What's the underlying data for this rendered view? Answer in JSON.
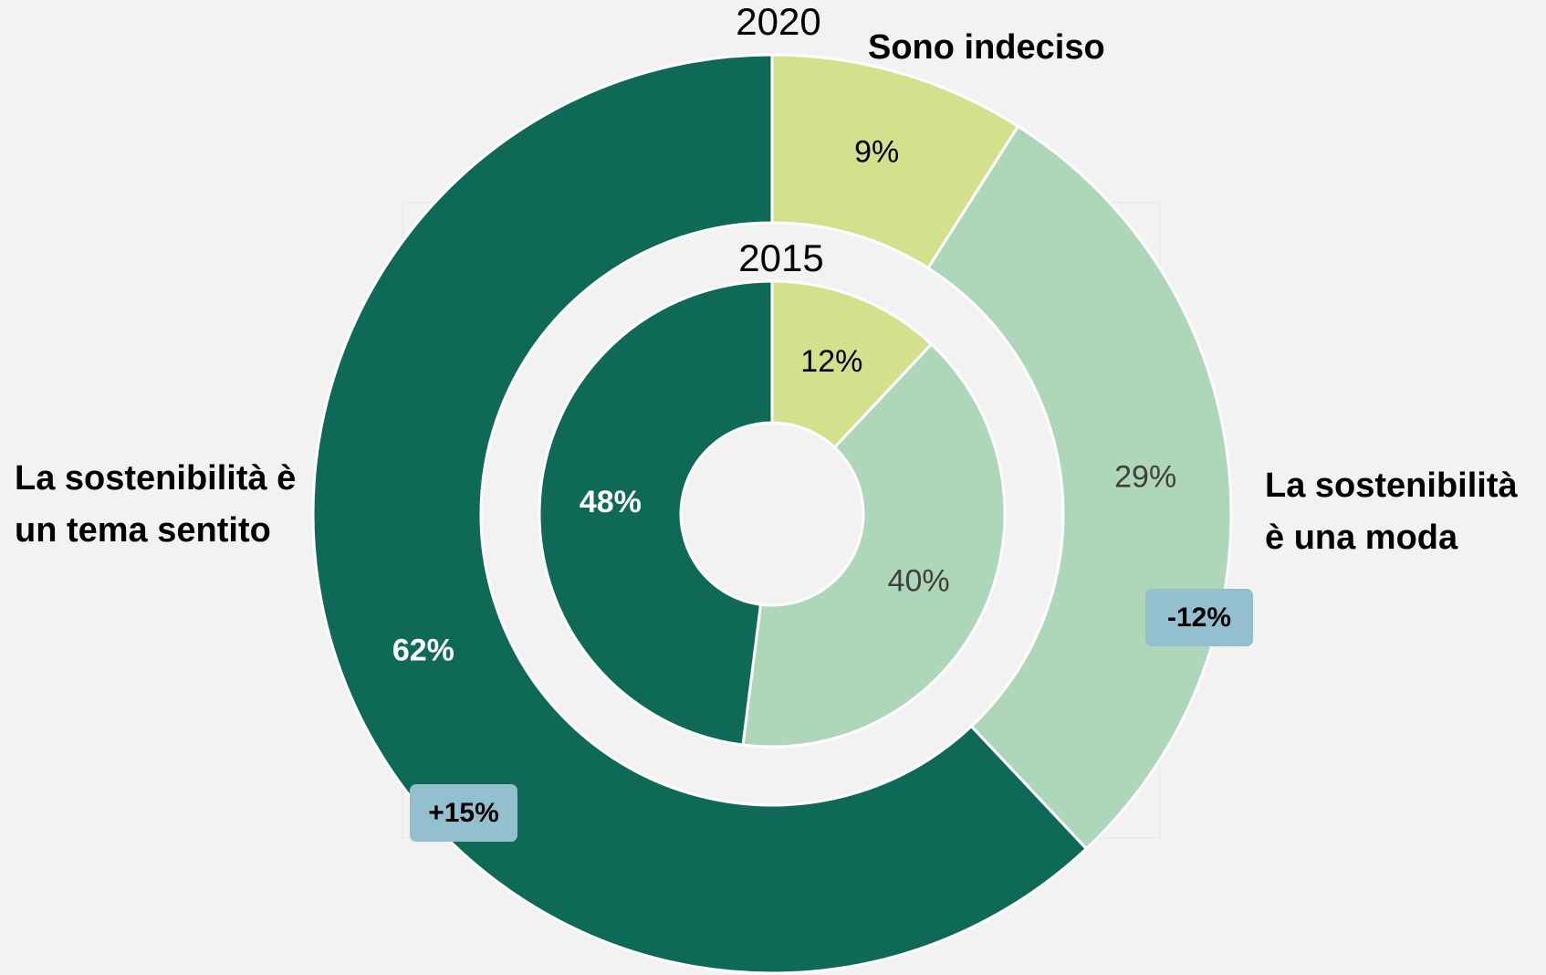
{
  "chart_data": {
    "type": "donut",
    "categories": [
      "Sono indeciso",
      "La sostenibilità è una moda",
      "La sostenibilità è un tema sentito"
    ],
    "colors": [
      "#d4e08c",
      "#aed6b8",
      "#0e6a57"
    ],
    "series": [
      {
        "name": "2020",
        "values": [
          9,
          29,
          62
        ],
        "value_labels": [
          "9%",
          "29%",
          "62%"
        ]
      },
      {
        "name": "2015",
        "values": [
          12,
          40,
          48
        ],
        "value_labels": [
          "12%",
          "40%",
          "48%"
        ]
      }
    ],
    "annotations": [
      {
        "text": "+15%"
      },
      {
        "text": "-12%"
      }
    ]
  }
}
